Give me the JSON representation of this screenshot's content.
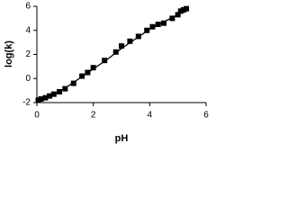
{
  "chart_data": {
    "type": "scatter",
    "x_label": "pH",
    "y_label": "log(k)",
    "xlim": [
      0,
      6
    ],
    "xticks": [
      0,
      2,
      4,
      6
    ],
    "ylim": [
      -2,
      6
    ],
    "yticks": [
      -2,
      0,
      2,
      4,
      6
    ],
    "grid": false,
    "series": [
      {
        "mode": "markers",
        "color": "#000000",
        "x": [
          0.05,
          0.15,
          0.3,
          0.45,
          0.6,
          0.8,
          1.0,
          1.3,
          1.6,
          1.8,
          2.0,
          2.4,
          2.8,
          3.0,
          3.3,
          3.6,
          3.9,
          4.1,
          4.3,
          4.5,
          4.8,
          5.0,
          5.1,
          5.2,
          5.3
        ],
        "values": [
          -1.8,
          -1.7,
          -1.6,
          -1.45,
          -1.3,
          -1.1,
          -0.85,
          -0.4,
          0.2,
          0.5,
          0.9,
          1.5,
          2.2,
          2.7,
          3.1,
          3.5,
          4.0,
          4.3,
          4.5,
          4.6,
          5.0,
          5.3,
          5.6,
          5.7,
          5.8
        ]
      },
      {
        "mode": "line",
        "color": "#000000",
        "x": [
          0,
          0.5,
          1.0,
          1.5,
          2.0,
          2.5,
          3.0,
          3.5,
          4.0,
          4.5,
          5.0,
          5.3
        ],
        "values": [
          -1.9,
          -1.45,
          -0.8,
          0.0,
          0.8,
          1.6,
          2.5,
          3.3,
          4.1,
          4.7,
          5.3,
          5.8
        ]
      }
    ]
  }
}
